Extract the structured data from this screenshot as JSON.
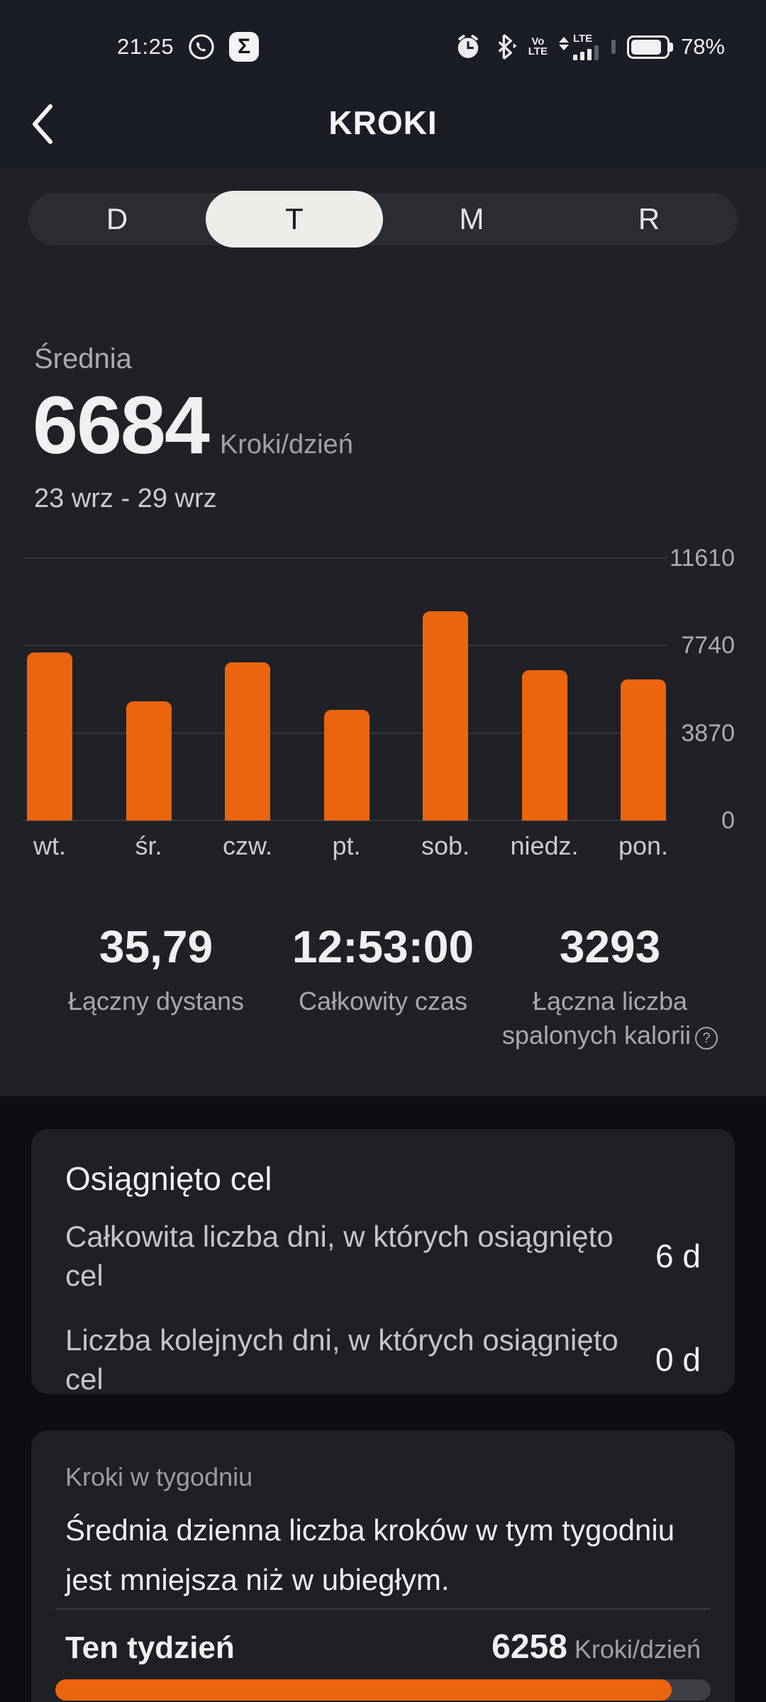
{
  "colors": {
    "accent_orange": "#eb640e",
    "header_bg": "#1a1d25",
    "content_bg": "#1f2126",
    "section_bg": "#0d0e11",
    "card_bg": "#1e2026",
    "tab_track": "#2b2d33",
    "tab_selected": "#eeece9",
    "progress_track": "#3d3f45"
  },
  "status_bar": {
    "time": "21:25",
    "battery_percent": "78%",
    "volte_line1": "Vo",
    "volte_line2": "LTE",
    "lte_label": "LTE",
    "icons": [
      "whatsapp-icon",
      "sigma-app-icon",
      "alarm-icon",
      "bluetooth-icon",
      "volte-icon",
      "signal-lte-icon",
      "battery-icon"
    ]
  },
  "header": {
    "title": "KROKI"
  },
  "tabs": [
    {
      "label": "D",
      "selected": false
    },
    {
      "label": "T",
      "selected": true
    },
    {
      "label": "M",
      "selected": false
    },
    {
      "label": "R",
      "selected": false
    }
  ],
  "summary": {
    "label": "Średnia",
    "value": "6684",
    "unit": "Kroki/dzień",
    "date_range": "23 wrz - 29 wrz"
  },
  "chart_data": {
    "type": "bar",
    "title": "Kroki 23 wrz - 29 wrz",
    "categories": [
      "wt.",
      "śr.",
      "czw.",
      "pt.",
      "sob.",
      "niedz.",
      "pon."
    ],
    "values": [
      7450,
      5280,
      7000,
      4900,
      9250,
      6650,
      6258
    ],
    "xlabel": "",
    "ylabel": "Kroki",
    "ylim": [
      0,
      11610
    ],
    "y_ticks": [
      11610,
      7740,
      3870,
      0
    ],
    "grid": "horizontal",
    "legend": "none",
    "bar_color": "#eb640e"
  },
  "stats": [
    {
      "value": "35,79",
      "label": "Łączny dystans",
      "help_icon": false
    },
    {
      "value": "12:53:00",
      "label": "Całkowity czas",
      "help_icon": false
    },
    {
      "value": "3293",
      "label": "Łączna liczba\nspalonych kalorii",
      "help_icon": true
    }
  ],
  "goal_card": {
    "title": "Osiągnięto cel",
    "rows": [
      {
        "label": "Całkowita liczba dni, w których osiągnięto\ncel",
        "value": "6 d"
      },
      {
        "label": "Liczba kolejnych dni, w których osiągnięto\ncel",
        "value": "0 d"
      }
    ]
  },
  "week_card": {
    "caption": "Kroki w tygodniu",
    "description": "Średnia dzienna liczba kroków w tym tygodniu\njest mniejsza niż w ubiegłym.",
    "row_label": "Ten tydzień",
    "row_value": "6258",
    "row_unit": "Kroki/dzień",
    "progress_percent": 94
  }
}
